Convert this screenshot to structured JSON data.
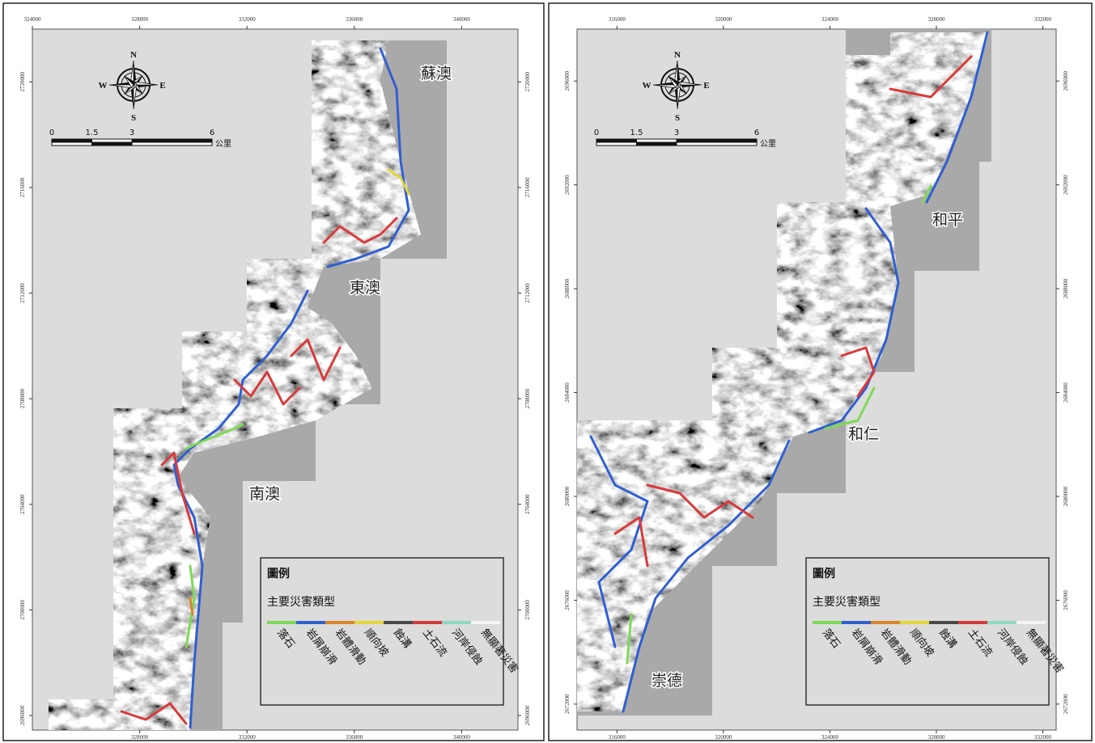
{
  "compass": {
    "north": "N",
    "east": "E",
    "south": "S",
    "west": "W"
  },
  "scale": {
    "ticks": [
      0,
      1.5,
      3,
      6
    ],
    "unit": "公里"
  },
  "legend": {
    "title": "圖例",
    "subtitle": "主要災害類型",
    "items": [
      {
        "name": "落石",
        "color": "#7ed957"
      },
      {
        "name": "岩屑崩滑",
        "color": "#2f5fd0"
      },
      {
        "name": "岩體滑動",
        "color": "#d9862b"
      },
      {
        "name": "順向坡",
        "color": "#e2d63a"
      },
      {
        "name": "蝕溝",
        "color": "#4a4a4a"
      },
      {
        "name": "土石流",
        "color": "#d83a3a"
      },
      {
        "name": "河岸侵蝕",
        "color": "#8fd9c4"
      },
      {
        "name": "無顯著災害",
        "color": "#f4f4f4"
      }
    ]
  },
  "panels": [
    {
      "xlim": [
        324000,
        342100
      ],
      "ylim": [
        2695450,
        2722000
      ],
      "x_ticks_top": [
        324000,
        328000,
        332000,
        336000,
        340000
      ],
      "x_ticks_bottom": [
        328000,
        332000,
        336000,
        340000
      ],
      "y_ticks": [
        2720000,
        2716000,
        2712000,
        2708000,
        2704000,
        2700000,
        2696000
      ],
      "places": [
        "蘇澳",
        "東澳",
        "南澳"
      ]
    },
    {
      "xlim": [
        314500,
        332500
      ],
      "ylim": [
        2671000,
        2698000
      ],
      "x_ticks_top": [
        316000,
        320000,
        324000,
        328000,
        332000
      ],
      "x_ticks_bottom": [
        316000,
        320000,
        324000,
        328000,
        332000
      ],
      "y_ticks": [
        2696000,
        2692000,
        2688000,
        2684000,
        2680000,
        2676000,
        2672000
      ],
      "places": [
        "和平",
        "和仁",
        "崇德"
      ]
    }
  ]
}
